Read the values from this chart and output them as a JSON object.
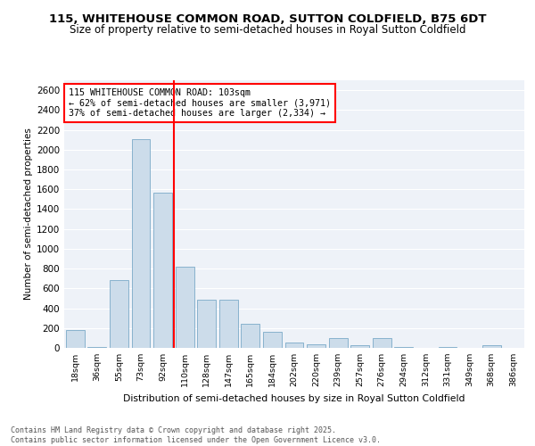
{
  "title": "115, WHITEHOUSE COMMON ROAD, SUTTON COLDFIELD, B75 6DT",
  "subtitle": "Size of property relative to semi-detached houses in Royal Sutton Coldfield",
  "xlabel": "Distribution of semi-detached houses by size in Royal Sutton Coldfield",
  "ylabel": "Number of semi-detached properties",
  "categories": [
    "18sqm",
    "36sqm",
    "55sqm",
    "73sqm",
    "92sqm",
    "110sqm",
    "128sqm",
    "147sqm",
    "165sqm",
    "184sqm",
    "202sqm",
    "220sqm",
    "239sqm",
    "257sqm",
    "276sqm",
    "294sqm",
    "312sqm",
    "331sqm",
    "349sqm",
    "368sqm",
    "386sqm"
  ],
  "values": [
    180,
    5,
    680,
    2110,
    1570,
    820,
    490,
    490,
    240,
    160,
    55,
    40,
    95,
    30,
    100,
    10,
    2,
    5,
    1,
    30,
    1
  ],
  "bar_color": "#ccdcea",
  "bar_edge_color": "#7aaac8",
  "annotation_text": "115 WHITEHOUSE COMMON ROAD: 103sqm\n← 62% of semi-detached houses are smaller (3,971)\n37% of semi-detached houses are larger (2,334) →",
  "ylim": [
    0,
    2700
  ],
  "yticks": [
    0,
    200,
    400,
    600,
    800,
    1000,
    1200,
    1400,
    1600,
    1800,
    2000,
    2200,
    2400,
    2600
  ],
  "footer": "Contains HM Land Registry data © Crown copyright and database right 2025.\nContains public sector information licensed under the Open Government Licence v3.0.",
  "bg_color": "#eef2f8",
  "title_fontsize": 9.5,
  "subtitle_fontsize": 8.5,
  "redline_index": 4.5
}
